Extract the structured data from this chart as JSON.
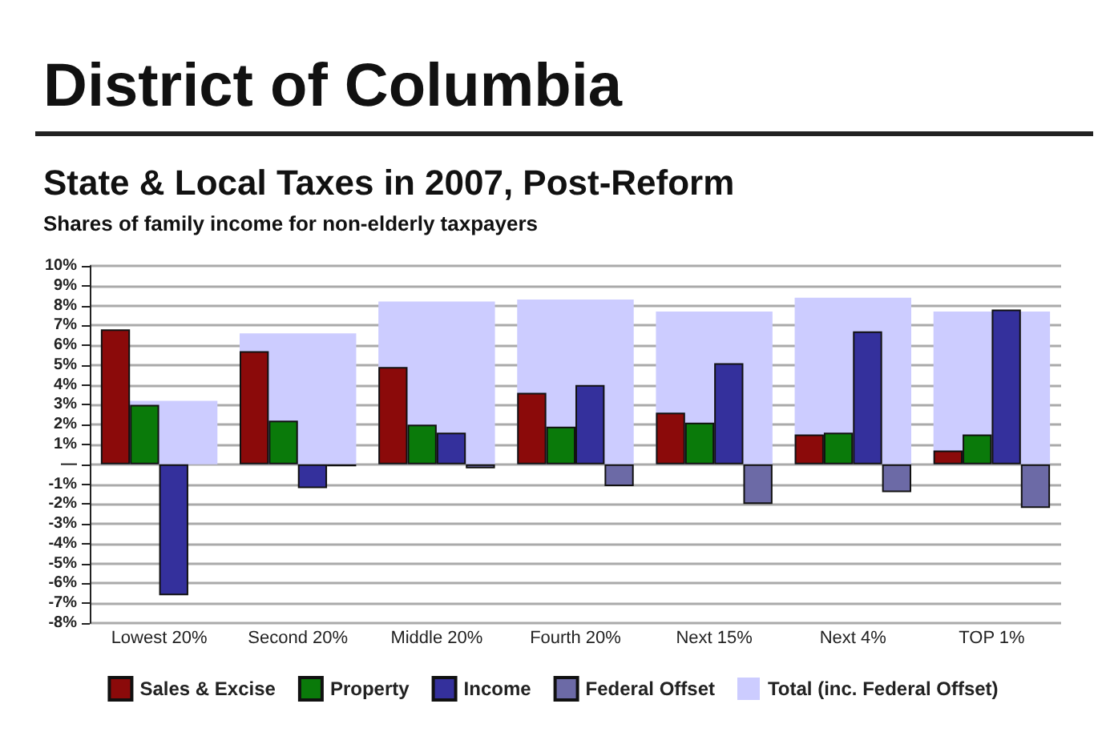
{
  "chart_data": {
    "type": "bar",
    "title": "District of Columbia",
    "subtitle": "State & Local Taxes in 2007, Post-Reform",
    "annotations": [
      "Shares of family income for non-elderly taxpayers"
    ],
    "categories": [
      "Lowest 20%",
      "Second 20%",
      "Middle 20%",
      "Fourth 20%",
      "Next 15%",
      "Next 4%",
      "TOP 1%"
    ],
    "series": [
      {
        "name": "Sales & Excise",
        "color": "#8b0a0a",
        "values": [
          6.8,
          5.7,
          4.9,
          3.6,
          2.6,
          1.5,
          0.7
        ]
      },
      {
        "name": "Property",
        "color": "#0a7a0a",
        "values": [
          3.0,
          2.2,
          2.0,
          1.9,
          2.1,
          1.6,
          1.5
        ]
      },
      {
        "name": "Income",
        "color": "#34309c",
        "values": [
          -6.6,
          -1.2,
          1.6,
          4.0,
          5.1,
          6.7,
          7.8
        ]
      },
      {
        "name": "Federal Offset",
        "color": "#6c6aa6",
        "values": [
          null,
          -0.1,
          -0.2,
          -1.1,
          -2.0,
          -1.4,
          -2.2
        ]
      },
      {
        "name": "Total (inc. Federal Offset)",
        "color": "#ccccff",
        "values": [
          3.2,
          6.6,
          8.2,
          8.3,
          7.7,
          8.4,
          7.7
        ]
      }
    ],
    "ylim": [
      -8,
      10
    ],
    "yticks": [
      {
        "value": -8,
        "label": "-8%"
      },
      {
        "value": -7,
        "label": "-7%"
      },
      {
        "value": -6,
        "label": "-6%"
      },
      {
        "value": -5,
        "label": "-5%"
      },
      {
        "value": -4,
        "label": "-4%"
      },
      {
        "value": -3,
        "label": "-3%"
      },
      {
        "value": -2,
        "label": "-2%"
      },
      {
        "value": -1,
        "label": "-1%"
      },
      {
        "value": 0,
        "label": "—"
      },
      {
        "value": 1,
        "label": "1%"
      },
      {
        "value": 2,
        "label": "2%"
      },
      {
        "value": 3,
        "label": "3%"
      },
      {
        "value": 4,
        "label": "4%"
      },
      {
        "value": 5,
        "label": "5%"
      },
      {
        "value": 6,
        "label": "6%"
      },
      {
        "value": 7,
        "label": "7%"
      },
      {
        "value": 8,
        "label": "8%"
      },
      {
        "value": 9,
        "label": "9%"
      },
      {
        "value": 10,
        "label": "10%"
      }
    ],
    "grid": "y",
    "legend": "bottom"
  }
}
